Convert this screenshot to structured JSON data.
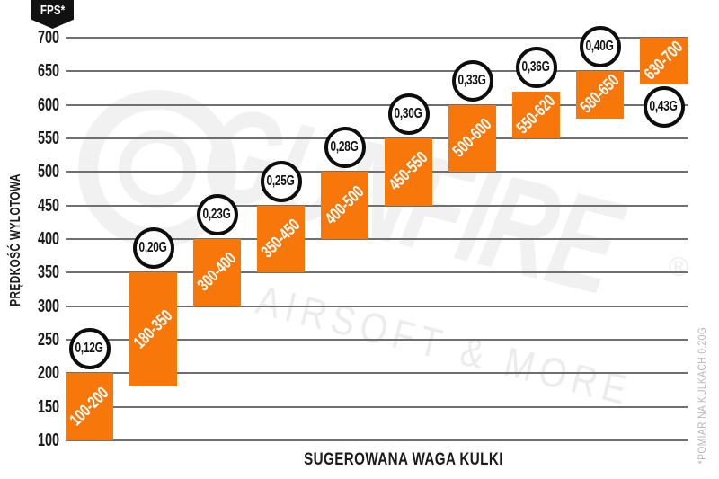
{
  "badge": {
    "label": "FPS*"
  },
  "footnote": "*POMIAR NA KULKACH 0.20G",
  "watermark": {
    "brand": "GUNFIRE",
    "tagline": "AIRSOFT & MORE",
    "registered": "®"
  },
  "colors": {
    "bar_orange": "#f8770a",
    "gridline_gray": "#6f6f6f",
    "circle_border_black": "#0d0d0d",
    "axis_text_black": "#1b1b1b",
    "footnote_gray": "#b5b5b5",
    "watermark_gray": "#f1f1f1",
    "badge_black": "#111111"
  },
  "chart_data": {
    "type": "bar",
    "title": "",
    "xlabel": "SUGEROWANA WAGA KULKI",
    "ylabel": "PRĘDKOŚĆ WYLOTOWA",
    "y_unit": "FPS*",
    "ylim": [
      100,
      700
    ],
    "ytick_step": 50,
    "yticks": [
      700,
      650,
      600,
      550,
      500,
      450,
      400,
      350,
      300,
      250,
      200,
      150,
      100
    ],
    "grid": true,
    "legend": false,
    "bars": [
      {
        "weight": "0,12G",
        "fps_min": 100,
        "fps_max": 200,
        "label": "100-200",
        "weight_pos": "above"
      },
      {
        "weight": "0,20G",
        "fps_min": 180,
        "fps_max": 350,
        "label": "180-350",
        "weight_pos": "above"
      },
      {
        "weight": "0,23G",
        "fps_min": 300,
        "fps_max": 400,
        "label": "300-400",
        "weight_pos": "above"
      },
      {
        "weight": "0,25G",
        "fps_min": 350,
        "fps_max": 450,
        "label": "350-450",
        "weight_pos": "above"
      },
      {
        "weight": "0,28G",
        "fps_min": 400,
        "fps_max": 500,
        "label": "400-500",
        "weight_pos": "above"
      },
      {
        "weight": "0,30G",
        "fps_min": 450,
        "fps_max": 550,
        "label": "450-550",
        "weight_pos": "above"
      },
      {
        "weight": "0,33G",
        "fps_min": 500,
        "fps_max": 600,
        "label": "500-600",
        "weight_pos": "above"
      },
      {
        "weight": "0,36G",
        "fps_min": 550,
        "fps_max": 620,
        "label": "550-620",
        "weight_pos": "above"
      },
      {
        "weight": "0,40G",
        "fps_min": 580,
        "fps_max": 650,
        "label": "580-650",
        "weight_pos": "above"
      },
      {
        "weight": "0,43G",
        "fps_min": 630,
        "fps_max": 700,
        "label": "630-700",
        "weight_pos": "below"
      }
    ]
  }
}
